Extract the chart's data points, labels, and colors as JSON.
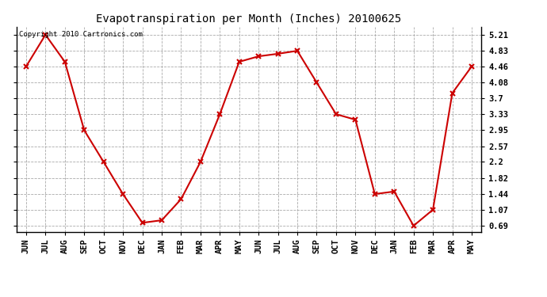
{
  "title": "Evapotranspiration per Month (Inches) 20100625",
  "copyright_text": "Copyright 2010 Cartronics.com",
  "months": [
    "JUN",
    "JUL",
    "AUG",
    "SEP",
    "OCT",
    "NOV",
    "DEC",
    "JAN",
    "FEB",
    "MAR",
    "APR",
    "MAY",
    "JUN",
    "JUL",
    "AUG",
    "SEP",
    "OCT",
    "NOV",
    "DEC",
    "JAN",
    "FEB",
    "MAR",
    "APR",
    "MAY"
  ],
  "values": [
    4.46,
    5.21,
    4.57,
    2.95,
    2.2,
    1.44,
    0.76,
    0.82,
    1.32,
    2.2,
    3.33,
    4.57,
    4.7,
    4.76,
    4.83,
    4.08,
    3.33,
    3.2,
    1.44,
    1.5,
    0.69,
    1.07,
    3.83,
    4.46
  ],
  "line_color": "#cc0000",
  "marker": "x",
  "marker_size": 4,
  "line_width": 1.5,
  "yticks": [
    0.69,
    1.07,
    1.44,
    1.82,
    2.2,
    2.57,
    2.95,
    3.33,
    3.7,
    4.08,
    4.46,
    4.83,
    5.21
  ],
  "ylim": [
    0.55,
    5.4
  ],
  "background_color": "#ffffff",
  "grid_color": "#aaaaaa",
  "title_fontsize": 10,
  "copyright_fontsize": 6.5,
  "tick_fontsize": 7.5,
  "tick_fontweight": "bold"
}
